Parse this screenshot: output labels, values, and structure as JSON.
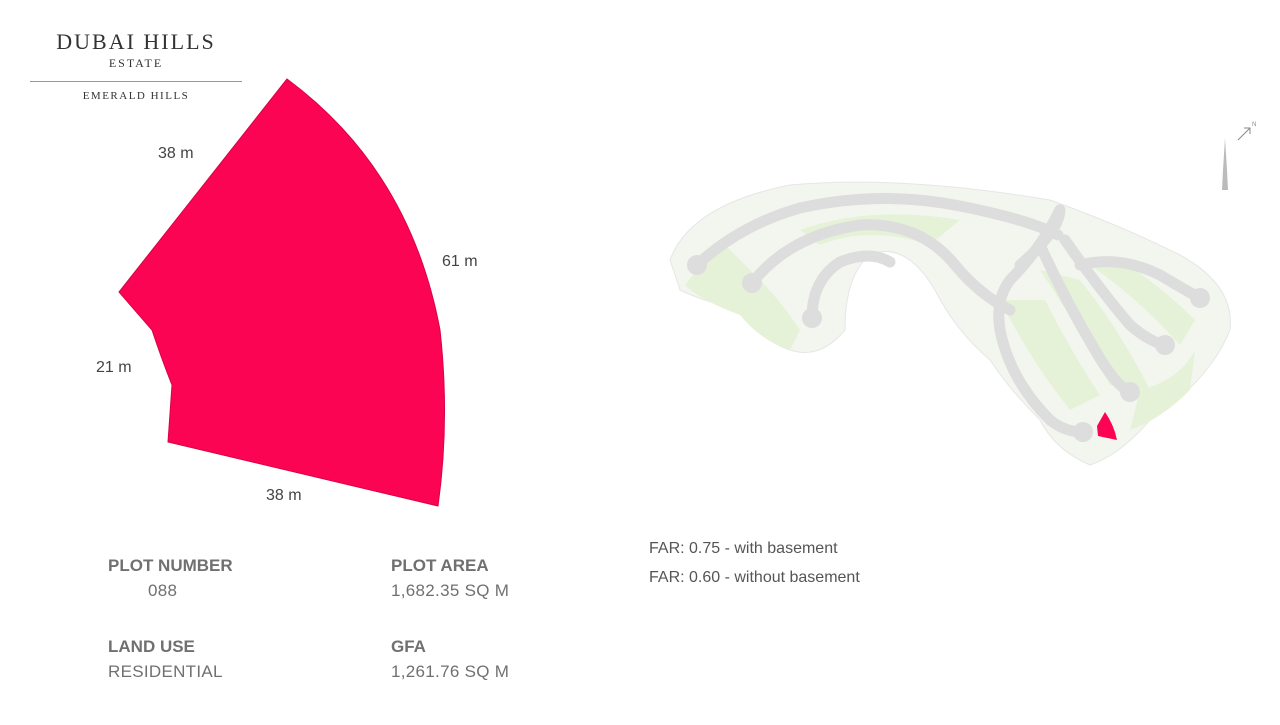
{
  "logo": {
    "brand": "DUBAI HILLS",
    "sub": "ESTATE",
    "community": "EMERALD HILLS"
  },
  "dimensions": {
    "top": "38 m",
    "right": "61 m",
    "left": "21 m",
    "bottom": "38 m"
  },
  "plot": {
    "number_label": "PLOT NUMBER",
    "number_value": "088",
    "area_label": "PLOT AREA",
    "area_value": "1,682.35 SQ M",
    "land_use_label": "LAND USE",
    "land_use_value": "RESIDENTIAL",
    "gfa_label": "GFA",
    "gfa_value": "1,261.76 SQ M"
  },
  "far": {
    "line1": "FAR: 0.75 - with basement",
    "line2": "FAR: 0.60 - without basement"
  },
  "colors": {
    "plot": "#FB0453",
    "road": "#DDDDDD",
    "green": "#E5F2D7"
  },
  "icons": {
    "north": "north-arrow-icon",
    "tower": "tower-landmark-icon"
  }
}
